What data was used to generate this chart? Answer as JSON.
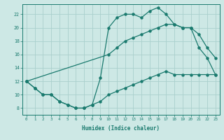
{
  "xlabel": "Humidex (Indice chaleur)",
  "ylabel": "",
  "bg_color": "#cde8e5",
  "grid_color": "#aacfcc",
  "line_color": "#1a7a6e",
  "xlim": [
    -0.5,
    23.5
  ],
  "ylim": [
    7,
    23.5
  ],
  "x_ticks": [
    0,
    1,
    2,
    3,
    4,
    5,
    6,
    7,
    8,
    9,
    10,
    11,
    12,
    13,
    14,
    15,
    16,
    17,
    18,
    19,
    20,
    21,
    22,
    23
  ],
  "y_ticks": [
    8,
    10,
    12,
    14,
    16,
    18,
    20,
    22
  ],
  "curve_top_x": [
    0,
    1,
    2,
    3,
    4,
    5,
    6,
    7,
    8,
    9,
    10,
    11,
    12,
    13,
    14,
    15,
    16,
    17,
    18,
    19,
    20,
    21,
    22,
    23
  ],
  "curve_top_y": [
    12,
    11,
    10,
    10,
    9,
    8.5,
    8,
    8,
    8.5,
    12.5,
    20,
    21.5,
    22,
    22,
    21.5,
    22.5,
    23,
    22,
    20.5,
    20,
    20,
    17,
    15.5,
    13
  ],
  "curve_bot_x": [
    0,
    1,
    2,
    3,
    4,
    5,
    6,
    7,
    8,
    9,
    10,
    11,
    12,
    13,
    14,
    15,
    16,
    17,
    18,
    19,
    20,
    21,
    22,
    23
  ],
  "curve_bot_y": [
    12,
    11,
    10,
    10,
    9,
    8.5,
    8,
    8,
    8.5,
    9,
    10,
    10.5,
    11,
    11.5,
    12,
    12.5,
    13,
    13.5,
    13,
    13,
    13,
    13,
    13,
    13
  ],
  "curve_diag_x": [
    0,
    10,
    11,
    12,
    13,
    14,
    15,
    16,
    17,
    18,
    19,
    20,
    21,
    22,
    23
  ],
  "curve_diag_y": [
    12,
    16,
    17,
    18,
    18.5,
    19,
    19.5,
    20,
    20.5,
    20.5,
    20,
    20,
    19,
    17,
    15.5
  ]
}
